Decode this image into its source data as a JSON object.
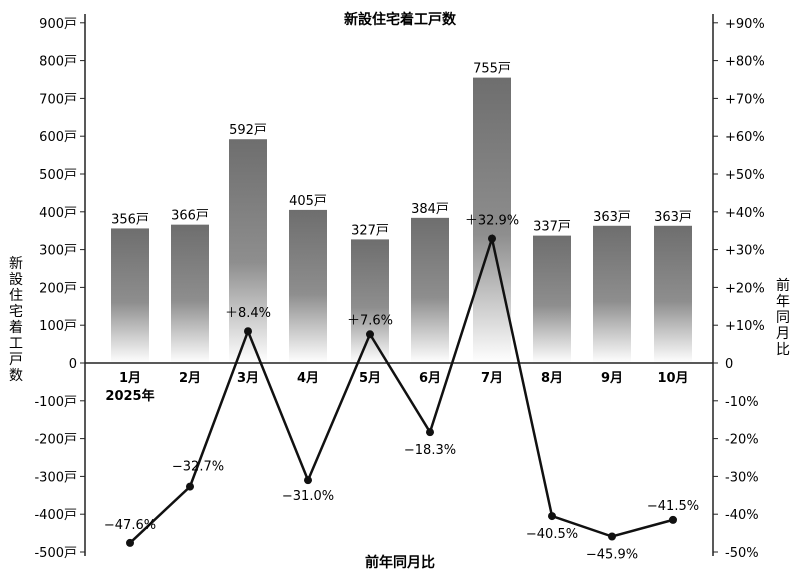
{
  "chart_data": {
    "type": "bar+line",
    "title": "新設住宅着工戸数",
    "categories": [
      "1月",
      "2月",
      "3月",
      "4月",
      "5月",
      "6月",
      "7月",
      "8月",
      "9月",
      "10月"
    ],
    "category_sublabel": "2025年",
    "series": [
      {
        "name": "新設住宅着工戸数",
        "type": "bar",
        "axis": "left",
        "values": [
          356,
          366,
          592,
          405,
          327,
          384,
          755,
          337,
          363,
          363
        ],
        "labels": [
          "356戸",
          "366戸",
          "592戸",
          "405戸",
          "327戸",
          "384戸",
          "755戸",
          "337戸",
          "363戸",
          "363戸"
        ]
      },
      {
        "name": "前年同月比",
        "type": "line",
        "axis": "right",
        "values": [
          -47.6,
          -32.7,
          8.4,
          -31.0,
          7.6,
          -18.3,
          32.9,
          -40.5,
          -45.9,
          -41.5
        ],
        "labels": [
          "−47.6%",
          "−32.7%",
          "＋8.4%",
          "−31.0%",
          "＋7.6%",
          "−18.3%",
          "＋32.9%",
          "−40.5%",
          "−45.9%",
          "−41.5%"
        ]
      }
    ],
    "ylabel_left": "新設住宅着工戸数",
    "ylabel_right": "前年同月比",
    "ylim_left": [
      -500,
      900
    ],
    "ylim_right": [
      -50,
      90
    ],
    "yticks_left": [
      "900戸",
      "800戸",
      "700戸",
      "600戸",
      "500戸",
      "400戸",
      "300戸",
      "200戸",
      "100戸",
      "0",
      "-100戸",
      "-200戸",
      "-300戸",
      "-400戸",
      "-500戸"
    ],
    "yticks_right": [
      "+90%",
      "+80%",
      "+70%",
      "+60%",
      "+50%",
      "+40%",
      "+30%",
      "+20%",
      "+10%",
      "0",
      "-10%",
      "-20%",
      "-30%",
      "-40%",
      "-50%"
    ],
    "grid": false,
    "colors": {
      "bar_top": "#6e6e6e",
      "bar_bottom": "#ffffff",
      "line": "#111111"
    }
  }
}
